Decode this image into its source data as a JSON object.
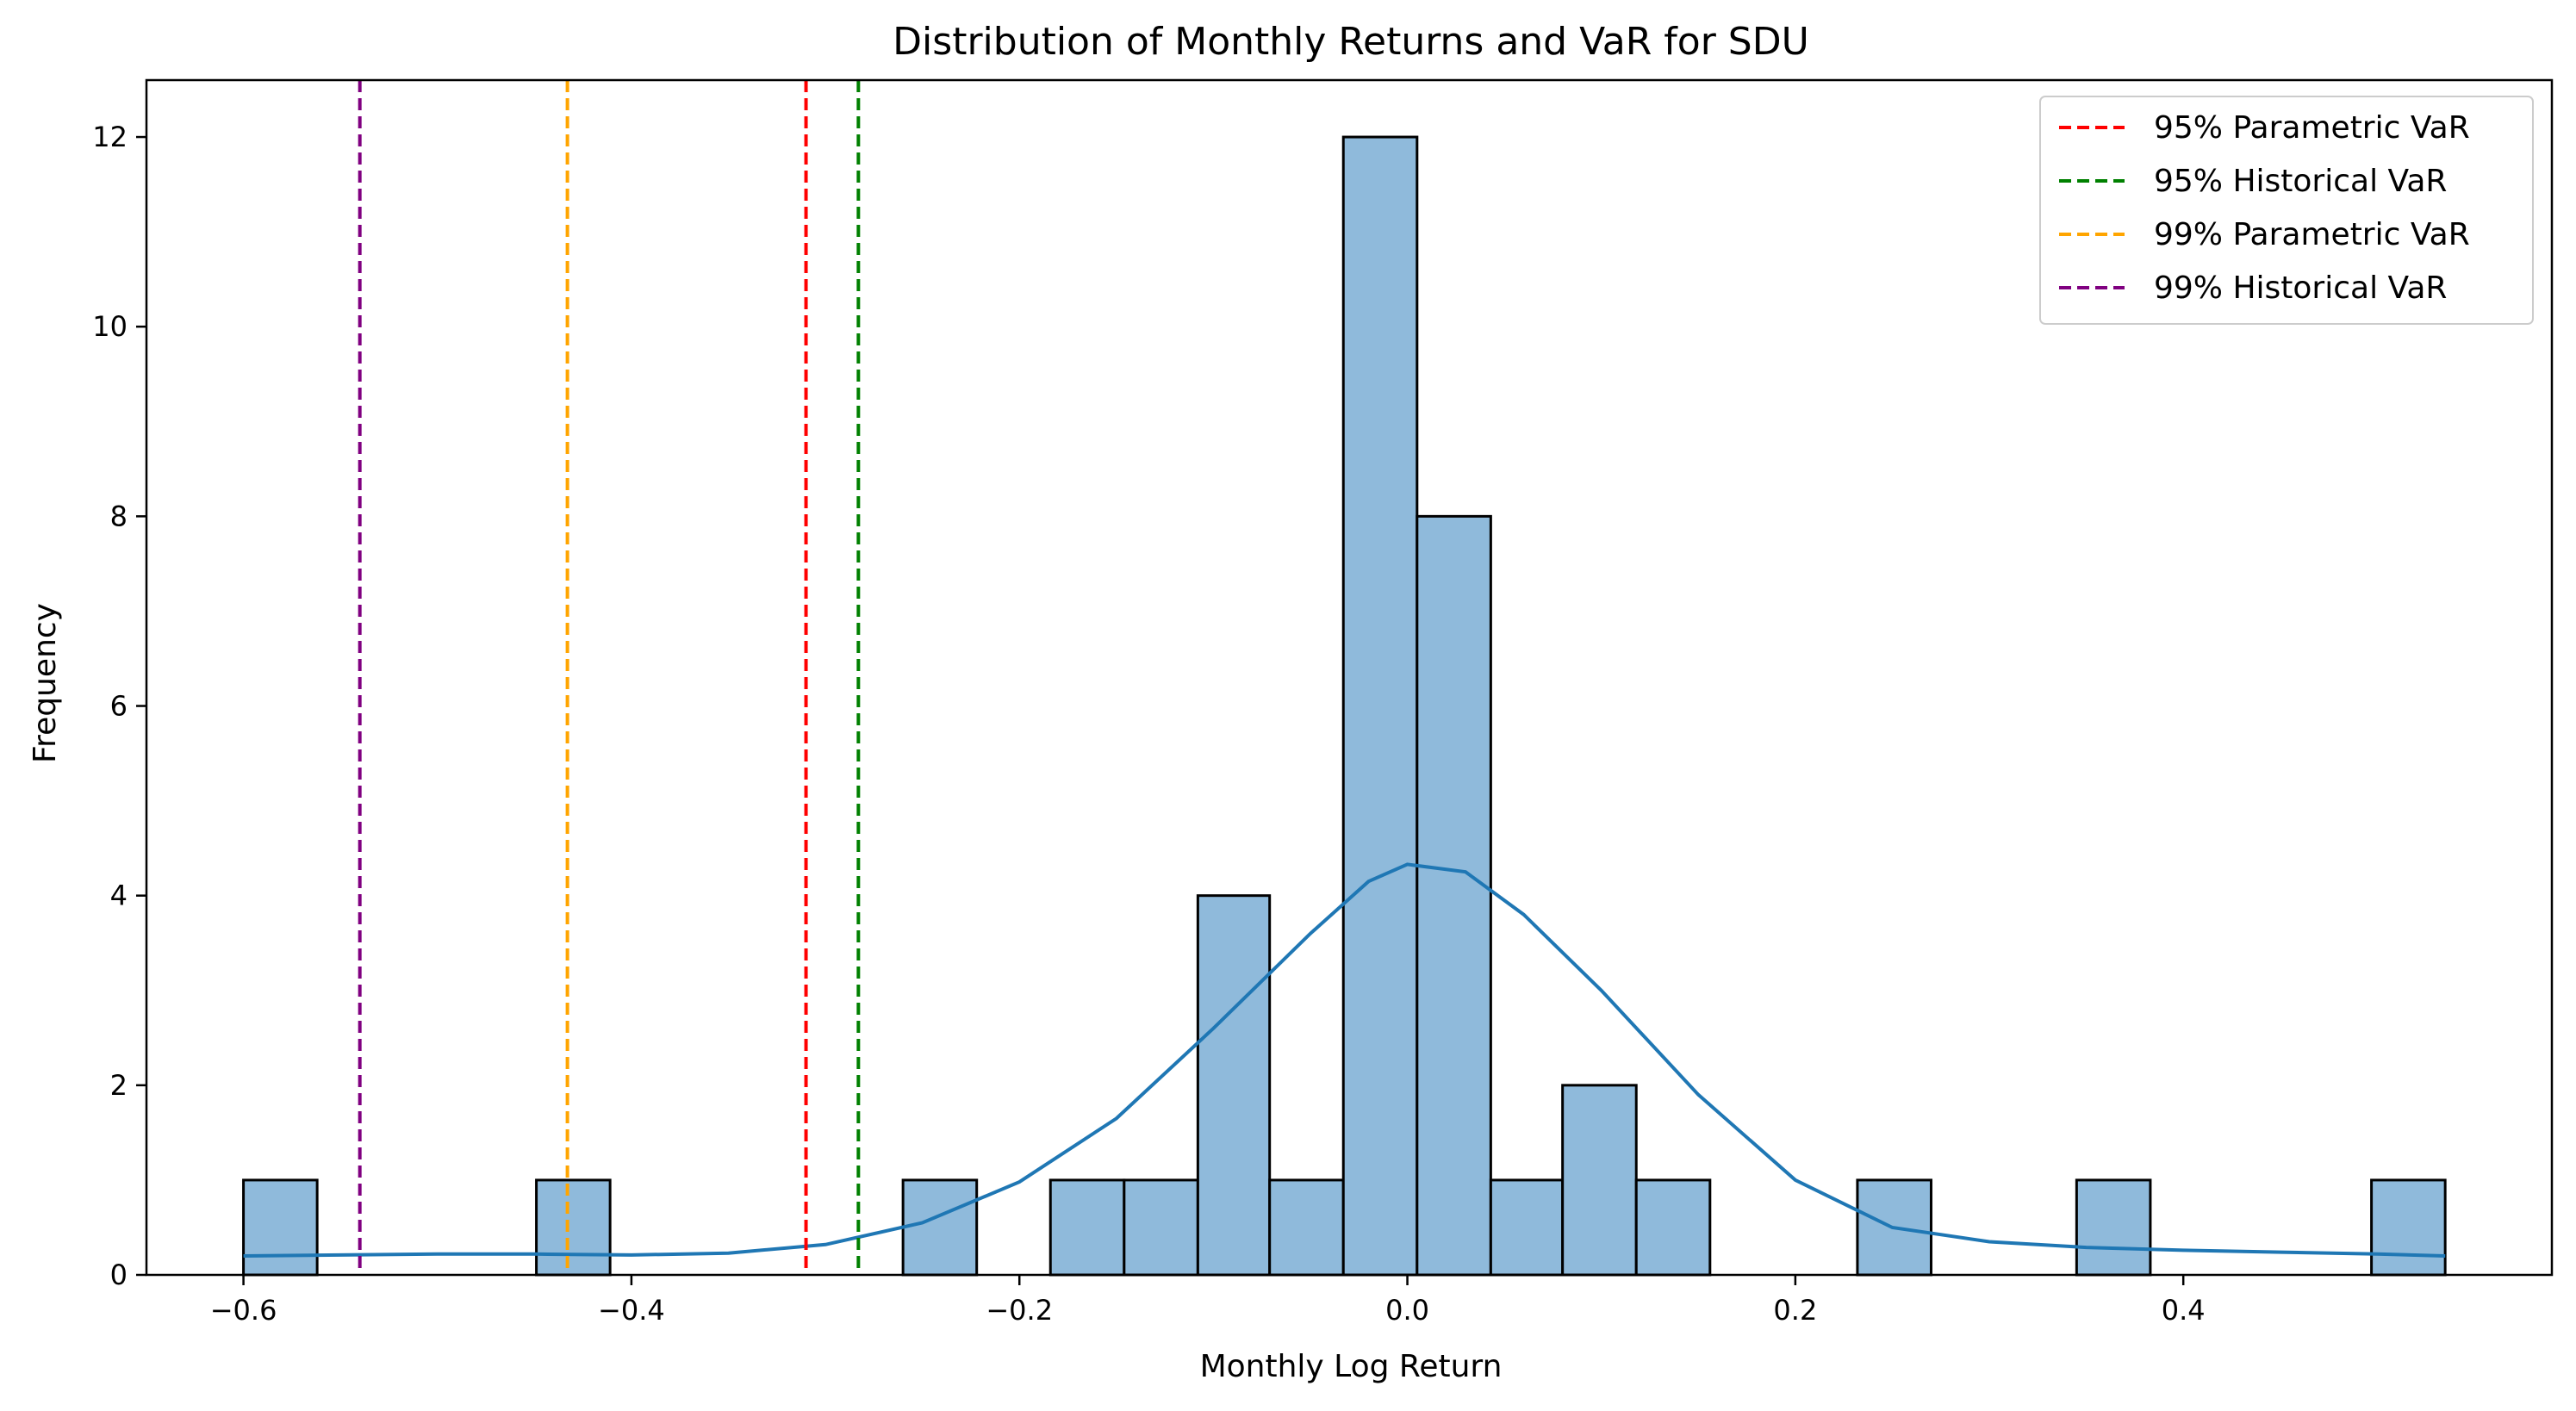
{
  "chart_data": {
    "type": "bar",
    "title": "Distribution of Monthly Returns and VaR for SDU",
    "xlabel": "Monthly Log Return",
    "ylabel": "Frequency",
    "xlim": [
      -0.65,
      0.59
    ],
    "ylim": [
      0,
      12.6
    ],
    "xticks": [
      -0.6,
      -0.4,
      -0.2,
      0.0,
      0.2,
      0.4
    ],
    "xtick_labels": [
      "−0.6",
      "−0.4",
      "−0.2",
      "0.0",
      "0.2",
      "0.4"
    ],
    "yticks": [
      0,
      2,
      4,
      6,
      8,
      10,
      12
    ],
    "ytick_labels": [
      "0",
      "2",
      "4",
      "6",
      "8",
      "10",
      "12"
    ],
    "grid": false,
    "legend_position": "top-right",
    "histogram": {
      "bar_color": "#8fbadb",
      "edge_color": "#000000",
      "bins": [
        {
          "x0": -0.6,
          "x1": -0.562,
          "count": 1
        },
        {
          "x0": -0.449,
          "x1": -0.411,
          "count": 1
        },
        {
          "x0": -0.26,
          "x1": -0.222,
          "count": 1
        },
        {
          "x0": -0.184,
          "x1": -0.146,
          "count": 1
        },
        {
          "x0": -0.146,
          "x1": -0.108,
          "count": 1
        },
        {
          "x0": -0.108,
          "x1": -0.071,
          "count": 4
        },
        {
          "x0": -0.071,
          "x1": -0.033,
          "count": 1
        },
        {
          "x0": -0.033,
          "x1": 0.005,
          "count": 12
        },
        {
          "x0": 0.005,
          "x1": 0.043,
          "count": 8
        },
        {
          "x0": 0.043,
          "x1": 0.08,
          "count": 1
        },
        {
          "x0": 0.08,
          "x1": 0.118,
          "count": 2
        },
        {
          "x0": 0.118,
          "x1": 0.156,
          "count": 1
        },
        {
          "x0": 0.232,
          "x1": 0.27,
          "count": 1
        },
        {
          "x0": 0.345,
          "x1": 0.383,
          "count": 1
        },
        {
          "x0": 0.497,
          "x1": 0.535,
          "count": 1
        }
      ]
    },
    "kde": {
      "color": "#1f77b4",
      "points": [
        [
          -0.6,
          0.2
        ],
        [
          -0.55,
          0.21
        ],
        [
          -0.5,
          0.22
        ],
        [
          -0.45,
          0.22
        ],
        [
          -0.4,
          0.21
        ],
        [
          -0.35,
          0.23
        ],
        [
          -0.3,
          0.32
        ],
        [
          -0.25,
          0.55
        ],
        [
          -0.2,
          0.98
        ],
        [
          -0.15,
          1.65
        ],
        [
          -0.1,
          2.6
        ],
        [
          -0.05,
          3.6
        ],
        [
          -0.02,
          4.15
        ],
        [
          0.0,
          4.33
        ],
        [
          0.03,
          4.25
        ],
        [
          0.06,
          3.8
        ],
        [
          0.1,
          3.0
        ],
        [
          0.15,
          1.9
        ],
        [
          0.2,
          1.0
        ],
        [
          0.25,
          0.5
        ],
        [
          0.3,
          0.35
        ],
        [
          0.35,
          0.29
        ],
        [
          0.4,
          0.26
        ],
        [
          0.45,
          0.24
        ],
        [
          0.5,
          0.22
        ],
        [
          0.535,
          0.2
        ]
      ]
    },
    "vlines": [
      {
        "name": "95% Parametric VaR",
        "x": -0.31,
        "color": "#ff0000"
      },
      {
        "name": "95% Historical VaR",
        "x": -0.283,
        "color": "#008000"
      },
      {
        "name": "99% Parametric VaR",
        "x": -0.433,
        "color": "#ffa500"
      },
      {
        "name": "99% Historical VaR",
        "x": -0.54,
        "color": "#800080"
      }
    ]
  }
}
